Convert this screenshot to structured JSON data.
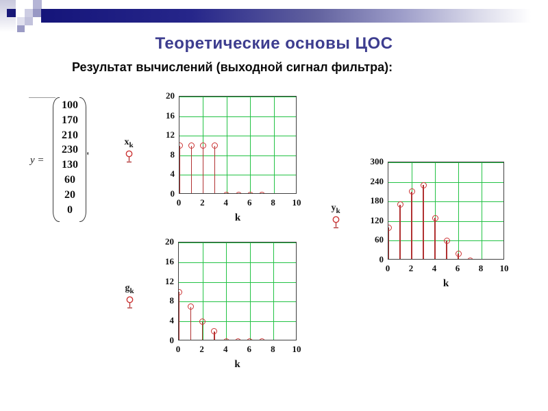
{
  "slide": {
    "title": "Теоретические основы ЦОС",
    "subtitle": "Результат вычислений (выходной сигнал фильтра):"
  },
  "matrix": {
    "lhs": "y =",
    "values": [
      "100",
      "170",
      "210",
      "230",
      "130",
      "60",
      "20",
      "0"
    ],
    "suffix": "'"
  },
  "colors": {
    "title": "#3d3d8f",
    "grid": "#22c244",
    "stem": "#b03030",
    "marker": "#cc3333",
    "bar_navy": "#15157a"
  },
  "chart_data": [
    {
      "id": "xk",
      "type": "stem",
      "label_base": "x",
      "label_sub": "k",
      "xlabel": "k",
      "x": [
        0,
        1,
        2,
        3,
        4,
        5,
        6,
        7
      ],
      "values": [
        10,
        10,
        10,
        10,
        0,
        0,
        0,
        0
      ],
      "xlim": [
        0,
        10
      ],
      "ylim": [
        0,
        20
      ],
      "xticks": [
        0,
        2,
        4,
        6,
        8,
        10
      ],
      "yticks": [
        0,
        4,
        8,
        12,
        16,
        20
      ],
      "grid": true,
      "legend_position": "left"
    },
    {
      "id": "yk",
      "type": "stem",
      "label_base": "y",
      "label_sub": "k",
      "xlabel": "k",
      "x": [
        0,
        1,
        2,
        3,
        4,
        5,
        6,
        7
      ],
      "values": [
        100,
        170,
        210,
        230,
        130,
        60,
        20,
        0
      ],
      "xlim": [
        0,
        10
      ],
      "ylim": [
        0,
        300
      ],
      "xticks": [
        0,
        2,
        4,
        6,
        8,
        10
      ],
      "yticks": [
        0,
        60,
        120,
        180,
        240,
        300
      ],
      "grid": true,
      "legend_position": "left"
    },
    {
      "id": "gk",
      "type": "stem",
      "label_base": "g",
      "label_sub": "k",
      "xlabel": "k",
      "x": [
        0,
        1,
        2,
        3,
        4,
        5,
        6,
        7
      ],
      "values": [
        10,
        7,
        4,
        2,
        0,
        0,
        0,
        0
      ],
      "xlim": [
        0,
        10
      ],
      "ylim": [
        0,
        20
      ],
      "xticks": [
        0,
        2,
        4,
        6,
        8,
        10
      ],
      "yticks": [
        0,
        4,
        8,
        12,
        16,
        20
      ],
      "grid": true,
      "legend_position": "left"
    }
  ]
}
